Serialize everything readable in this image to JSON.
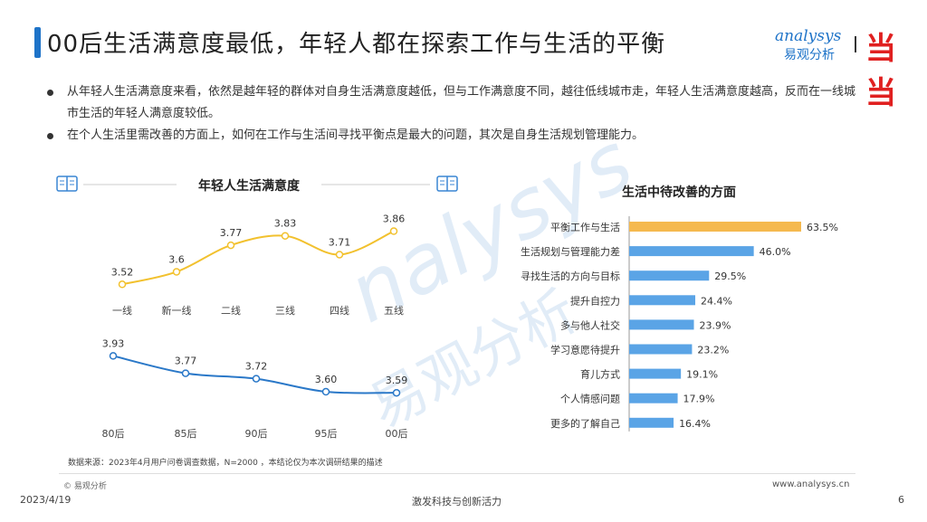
{
  "header": {
    "title": "00后生活满意度最低，年轻人都在探索工作与生活的平衡",
    "logo_en": "analysys",
    "logo_cn": "易观分析",
    "partner_logo": "当当",
    "watermark_en": "nalysys",
    "watermark_cn": "易观分析"
  },
  "bullets": [
    "从年轻人生活满意度来看，依然是越年轻的群体对自身生活满意度越低，但与工作满意度不同，越往低线城市走，年轻人生活满意度越高，反而在一线城市生活的年轻人满意度较低。",
    "在个人生活里需改善的方面上，如何在工作与生活间寻找平衡点是最大的问题，其次是自身生活规划管理能力。"
  ],
  "footer": {
    "source": "数据来源：2023年4月用户问卷调查数据，N=2000 ，本结论仅为本次调研结果的描述",
    "copyright": "© 易观分析",
    "website": "www.analysys.cn",
    "date": "2023/4/19",
    "slogan": "激发科技与创新活力",
    "page": "6"
  },
  "colors": {
    "accent": "#1e73c8",
    "yellow_line": "#f2c12e",
    "blue_line": "#2a78c8",
    "bar_highlight": "#f5b94f",
    "bar_default": "#5aa4e6"
  },
  "chart_data": [
    {
      "type": "line",
      "title": "年轻人生活满意度",
      "categories": [
        "一线",
        "新一线",
        "二线",
        "三线",
        "四线",
        "五线"
      ],
      "series": [
        {
          "values": [
            3.52,
            3.6,
            3.77,
            3.83,
            3.71,
            3.86
          ]
        }
      ],
      "labels": [
        "3.52",
        "3.6",
        "3.77",
        "3.83",
        "3.71",
        "3.86"
      ],
      "ylim": [
        3.4,
        3.95
      ]
    },
    {
      "type": "line",
      "title": "",
      "categories": [
        "80后",
        "85后",
        "90后",
        "95后",
        "00后"
      ],
      "series": [
        {
          "values": [
            3.93,
            3.77,
            3.72,
            3.6,
            3.59
          ]
        }
      ],
      "labels": [
        "3.93",
        "3.77",
        "3.72",
        "3.60",
        "3.59"
      ],
      "ylim": [
        3.5,
        4.0
      ]
    },
    {
      "type": "bar",
      "title": "生活中待改善的方面",
      "categories": [
        "平衡工作与生活",
        "生活规划与管理能力差",
        "寻找生活的方向与目标",
        "提升自控力",
        "多与他人社交",
        "学习意愿待提升",
        "育儿方式",
        "个人情感问题",
        "更多的了解自己"
      ],
      "values": [
        63.5,
        46.0,
        29.5,
        24.4,
        23.9,
        23.2,
        19.1,
        17.9,
        16.4
      ],
      "labels": [
        "63.5%",
        "46.0%",
        "29.5%",
        "24.4%",
        "23.9%",
        "23.2%",
        "19.1%",
        "17.9%",
        "16.4%"
      ],
      "xlim": [
        0,
        70
      ]
    }
  ]
}
